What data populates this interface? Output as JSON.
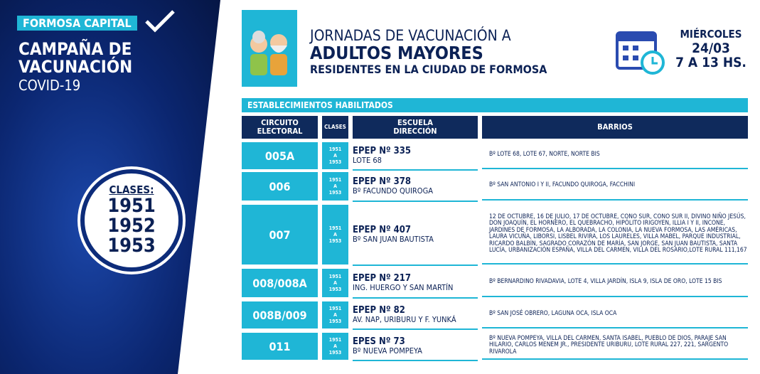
{
  "sidebar": {
    "badge": "FORMOSA CAPITAL",
    "title": [
      "CAMPAÑA DE",
      "VACUNACIÓN"
    ],
    "subtitle": "COVID-19",
    "classes_label": "CLASES:",
    "years": [
      "1951",
      "1952",
      "1953"
    ]
  },
  "header": {
    "lines": [
      "JORNADAS DE VACUNACIÓN A",
      "ADULTOS MAYORES",
      "RESIDENTES EN LA CIUDAD DE FORMOSA"
    ],
    "date": [
      "MIÉRCOLES",
      "24/03",
      "7 A 13 HS."
    ]
  },
  "table": {
    "section": "ESTABLECIMIENTOS HABILITADOS",
    "columns": [
      [
        "CIRCUITO",
        "ELECTORAL"
      ],
      [
        "CLASES"
      ],
      [
        "ESCUELA",
        "DIRECCIÓN"
      ],
      [
        "BARRIOS"
      ]
    ],
    "rows": [
      {
        "circuit": "005A",
        "classes": [
          "1951",
          "A",
          "1953"
        ],
        "school": "EPEP Nº 335",
        "address": "LOTE 68",
        "barrios": "Bº LOTE 68, LOTE 67, NORTE, NORTE BIS"
      },
      {
        "circuit": "006",
        "classes": [
          "1951",
          "A",
          "1953"
        ],
        "school": "EPEP Nº 378",
        "address": "Bº FACUNDO QUIROGA",
        "barrios": "Bº SAN ANTONIO I Y II, FACUNDO QUIROGA, FACCHINI"
      },
      {
        "circuit": "007",
        "classes": [
          "1951",
          "A",
          "1953"
        ],
        "school": "EPEP Nº 407",
        "address": "Bº SAN JUAN BAUTISTA",
        "barrios": "12 DE OCTUBRE, 16 DE JULIO, 17 DE OCTUBRE, CONO SUR, CONO SUR II, DIVINO NIÑO JESÚS, DON JOAQUÍN, EL HORNERO, EL QUEBRACHO, HIPÓLITO IRIGOYEN, ILLIA I Y II, INCONE, JARDINES DE FORMOSA, LA ALBORADA, LA COLONIA, LA NUEVA FORMOSA, LAS AMÉRICAS, LAURA VICUÑA, LIBORSI, LISBEL RIVIRA, LOS LAURELES, VILLA MABEL, PARQUE INDUSTRIAL, RICARDO BALBÍN, SAGRADO CORAZÓN DE MARÍA, SAN JORGE, SAN JUAN BAUTISTA, SANTA LUCÍA, URBANIZACIÓN ESPAÑA, VILLA DEL CARMEN, VILLA DEL ROSARIO,LOTE RURAL 111,167"
      },
      {
        "circuit": "008/008A",
        "classes": [
          "1951",
          "A",
          "1953"
        ],
        "school": "EPEP Nº 217",
        "address": "ING. HUERGO Y SAN MARTÍN",
        "barrios": "Bº BERNARDINO RIVADAVIA, LOTE 4, VILLA JARDÍN, ISLA 9, ISLA DE ORO, LOTE 15 BIS"
      },
      {
        "circuit": "008B/009",
        "classes": [
          "1951",
          "A",
          "1953"
        ],
        "school": "EPEP Nº 82",
        "address": "AV. NAP, URIBURU Y F. YUNKÁ",
        "barrios": "Bº SAN JOSÉ OBRERO, LAGUNA OCA, ISLA OCA"
      },
      {
        "circuit": "011",
        "classes": [
          "1951",
          "A",
          "1953"
        ],
        "school": "EPES Nº 73",
        "address": "Bº NUEVA POMPEYA",
        "barrios": "Bº NUEVA POMPEYA, VILLA DEL CARMEN, SANTA ISABEL, PUEBLO DE DIOS, PARAJE SAN HILARIO, CARLOS MENEM JR., PRESIDENTE URIBURU, LOTE RURAL 227, 221, SARGENTO RIVAROLA"
      }
    ]
  }
}
